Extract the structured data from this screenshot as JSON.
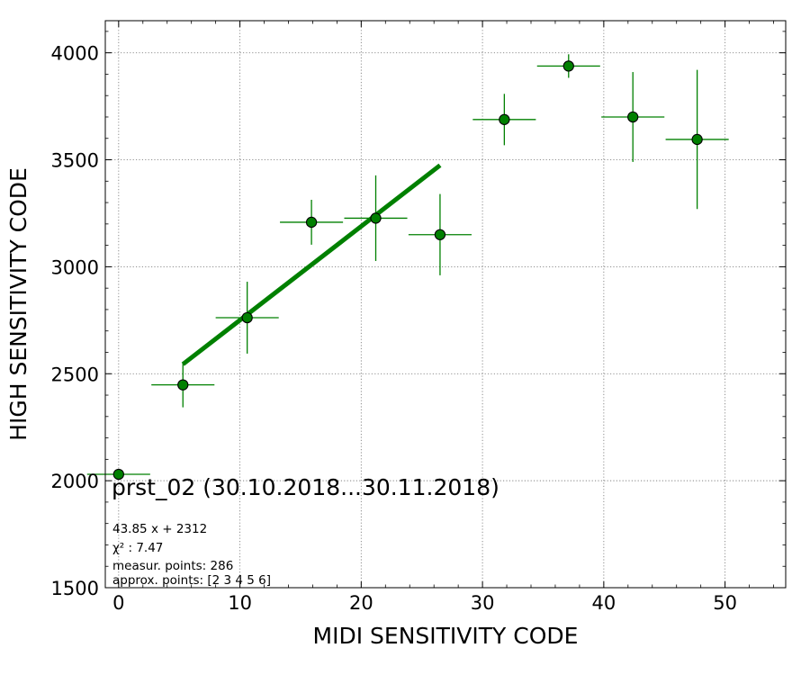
{
  "chart_data": {
    "type": "scatter",
    "title": "prst_02 (30.10.2018...30.11.2018)",
    "xlabel": "MIDI SENSITIVITY CODE",
    "ylabel": "HIGH SENSITIVITY CODE",
    "xlim": [
      -1.1,
      55
    ],
    "ylim": [
      1500,
      4150
    ],
    "xticks": [
      0,
      10,
      20,
      30,
      40,
      50
    ],
    "yticks": [
      1500,
      2000,
      2500,
      3000,
      3500,
      4000
    ],
    "grid": true,
    "colors": {
      "series": "#008000",
      "fit": "#008000",
      "edge": "#000000",
      "grid": "#808080"
    },
    "points": [
      {
        "x": 0,
        "y": 2030,
        "xerr": 2.6,
        "yerr": 0
      },
      {
        "x": 5.3,
        "y": 2448,
        "xerr": 2.6,
        "yerr": 105
      },
      {
        "x": 10.6,
        "y": 2762,
        "xerr": 2.6,
        "yerr": 168
      },
      {
        "x": 15.9,
        "y": 3208,
        "xerr": 2.6,
        "yerr": 105
      },
      {
        "x": 21.2,
        "y": 3227,
        "xerr": 2.6,
        "yerr": 200
      },
      {
        "x": 26.5,
        "y": 3150,
        "xerr": 2.6,
        "yerr": 190
      },
      {
        "x": 31.8,
        "y": 3688,
        "xerr": 2.6,
        "yerr": 120
      },
      {
        "x": 37.1,
        "y": 3938,
        "xerr": 2.6,
        "yerr": 55
      },
      {
        "x": 42.4,
        "y": 3700,
        "xerr": 2.6,
        "yerr": 210
      },
      {
        "x": 47.7,
        "y": 3595,
        "xerr": 2.6,
        "yerr": 325
      }
    ],
    "fit": {
      "slope": 43.85,
      "intercept": 2312,
      "x_range": [
        5.3,
        26.5
      ]
    },
    "annotations": [
      "43.85 x + 2312",
      "χ² : 7.47",
      "measur. points: 286",
      "approx. points: [2 3 4 5 6]"
    ]
  }
}
